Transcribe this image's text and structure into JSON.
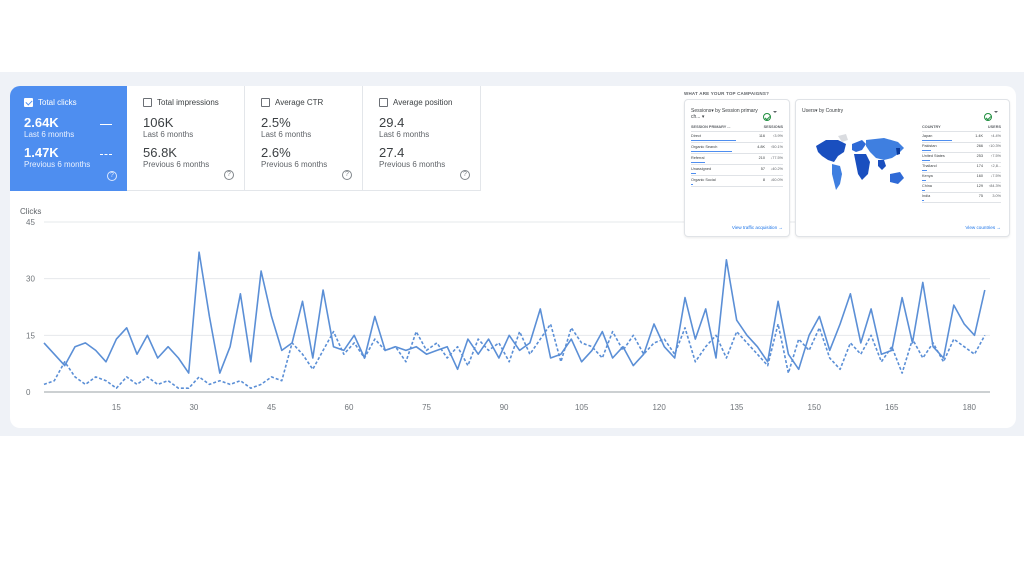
{
  "metrics": [
    {
      "label": "Total clicks",
      "checked": true,
      "current": "2.64K",
      "current_label": "Last 6 months",
      "previous": "1.47K",
      "previous_label": "Previous 6 months"
    },
    {
      "label": "Total impressions",
      "checked": false,
      "current": "106K",
      "current_label": "Last 6 months",
      "previous": "56.8K",
      "previous_label": "Previous 6 months"
    },
    {
      "label": "Average CTR",
      "checked": false,
      "current": "2.5%",
      "current_label": "Last 6 months",
      "previous": "2.6%",
      "previous_label": "Previous 6 months"
    },
    {
      "label": "Average position",
      "checked": false,
      "current": "29.4",
      "current_label": "Last 6 months",
      "previous": "27.4",
      "previous_label": "Previous 6 months"
    }
  ],
  "help_glyph": "?",
  "colors": {
    "accent": "#4e8ef0",
    "line_current": "#5b8fd6",
    "line_previous": "#5b8fd6",
    "band": "#eff2f7"
  },
  "chart_data": {
    "type": "line",
    "ylabel": "Clicks",
    "yticks": [
      0,
      15,
      30,
      45
    ],
    "ylim": [
      0,
      45
    ],
    "xticks": [
      15,
      30,
      45,
      60,
      75,
      90,
      105,
      120,
      135,
      150,
      165,
      180
    ],
    "xlim": [
      1,
      184
    ],
    "grid": true,
    "series": [
      {
        "style": "solid",
        "x": [
          1,
          3,
          5,
          7,
          9,
          11,
          13,
          15,
          17,
          19,
          21,
          23,
          25,
          27,
          29,
          31,
          33,
          35,
          37,
          39,
          41,
          43,
          45,
          47,
          49,
          51,
          53,
          55,
          57,
          59,
          61,
          63,
          65,
          67,
          69,
          71,
          73,
          75,
          77,
          79,
          81,
          83,
          85,
          87,
          89,
          91,
          93,
          95,
          97,
          99,
          101,
          103,
          105,
          107,
          109,
          111,
          113,
          115,
          117,
          119,
          121,
          123,
          125,
          127,
          129,
          131,
          133,
          135,
          137,
          139,
          141,
          143,
          145,
          147,
          149,
          151,
          153,
          155,
          157,
          159,
          161,
          163,
          165,
          167,
          169,
          171,
          173,
          175,
          177,
          179,
          181,
          183
        ],
        "y": [
          13,
          10,
          7,
          12,
          13,
          11,
          8,
          14,
          17,
          10,
          15,
          9,
          12,
          9,
          5,
          37,
          20,
          5,
          12,
          26,
          8,
          32,
          20,
          11,
          13,
          24,
          9,
          27,
          12,
          11,
          15,
          9,
          20,
          11,
          12,
          11,
          12,
          10,
          11,
          12,
          6,
          14,
          10,
          14,
          9,
          15,
          11,
          13,
          22,
          9,
          10,
          14,
          8,
          11,
          16,
          9,
          12,
          7,
          10,
          18,
          12,
          9,
          25,
          14,
          22,
          9,
          35,
          19,
          15,
          12,
          8,
          24,
          10,
          6,
          15,
          20,
          11,
          18,
          26,
          13,
          22,
          10,
          11,
          25,
          13,
          29,
          12,
          9,
          23,
          18,
          15,
          27
        ]
      },
      {
        "style": "dashed",
        "x": [
          1,
          3,
          5,
          7,
          9,
          11,
          13,
          15,
          17,
          19,
          21,
          23,
          25,
          27,
          29,
          31,
          33,
          35,
          37,
          39,
          41,
          43,
          45,
          47,
          49,
          51,
          53,
          55,
          57,
          59,
          61,
          63,
          65,
          67,
          69,
          71,
          73,
          75,
          77,
          79,
          81,
          83,
          85,
          87,
          89,
          91,
          93,
          95,
          97,
          99,
          101,
          103,
          105,
          107,
          109,
          111,
          113,
          115,
          117,
          119,
          121,
          123,
          125,
          127,
          129,
          131,
          133,
          135,
          137,
          139,
          141,
          143,
          145,
          147,
          149,
          151,
          153,
          155,
          157,
          159,
          161,
          163,
          165,
          167,
          169,
          171,
          173,
          175,
          177,
          179,
          181,
          183
        ],
        "y": [
          2,
          3,
          8,
          4,
          2,
          4,
          3,
          1,
          4,
          2,
          4,
          2,
          3,
          1,
          1,
          4,
          2,
          3,
          2,
          3,
          1,
          2,
          4,
          3,
          13,
          10,
          6,
          11,
          16,
          10,
          13,
          9,
          14,
          11,
          12,
          8,
          16,
          11,
          13,
          9,
          12,
          7,
          14,
          11,
          13,
          8,
          16,
          10,
          14,
          18,
          8,
          17,
          13,
          12,
          9,
          16,
          11,
          15,
          10,
          13,
          14,
          10,
          17,
          8,
          12,
          15,
          9,
          16,
          13,
          10,
          7,
          18,
          5,
          14,
          11,
          17,
          9,
          6,
          13,
          10,
          15,
          8,
          12,
          5,
          14,
          9,
          13,
          8,
          14,
          12,
          10,
          15
        ]
      }
    ]
  },
  "campaigns": {
    "title": "WHAT ARE YOUR TOP CAMPAIGNS?",
    "sessions": {
      "title": "Sessions▾ by Session primary ch... ▾",
      "col1": "SESSION PRIMARY ...",
      "col2": "SESSIONS",
      "rows": [
        {
          "name": "Direct",
          "value": "116",
          "change": "↑3.9%",
          "bar": 1.0
        },
        {
          "name": "Organic Search",
          "value": "4.8K",
          "change": "↑50.1%",
          "bar": 0.9
        },
        {
          "name": "Referral",
          "value": "210",
          "change": "↓77.5%",
          "bar": 0.3
        },
        {
          "name": "Unassigned",
          "value": "57",
          "change": "↓40.2%",
          "bar": 0.1
        },
        {
          "name": "Organic Social",
          "value": "8",
          "change": "↓60.0%",
          "bar": 0.04
        }
      ],
      "link": "View traffic acquisition"
    },
    "users": {
      "title": "Users▾ by Country",
      "col1": "COUNTRY",
      "col2": "USERS",
      "rows": [
        {
          "name": "Japan",
          "value": "1.4K",
          "change": "↑4.4%",
          "bar": 1.0
        },
        {
          "name": "Pakistan",
          "value": "266",
          "change": "↑10.3%",
          "bar": 0.3
        },
        {
          "name": "United States",
          "value": "253",
          "change": "↑7.5%",
          "bar": 0.25
        },
        {
          "name": "Thailand",
          "value": "174",
          "change": "↑2,8...",
          "bar": 0.15
        },
        {
          "name": "Kenya",
          "value": "160",
          "change": "↓7.5%",
          "bar": 0.12
        },
        {
          "name": "China",
          "value": "129",
          "change": "↑84.3%",
          "bar": 0.1
        },
        {
          "name": "India",
          "value": "75",
          "change": "3.0%",
          "bar": 0.06
        }
      ],
      "link": "View countries"
    }
  }
}
